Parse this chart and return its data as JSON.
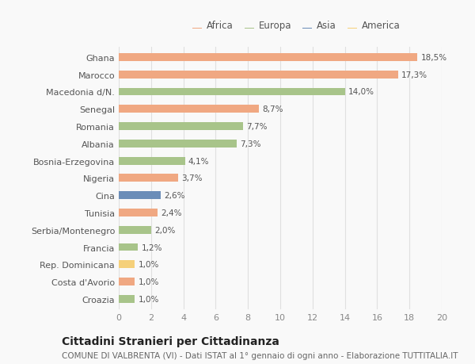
{
  "categories": [
    "Ghana",
    "Marocco",
    "Macedonia d/N.",
    "Senegal",
    "Romania",
    "Albania",
    "Bosnia-Erzegovina",
    "Nigeria",
    "Cina",
    "Tunisia",
    "Serbia/Montenegro",
    "Francia",
    "Rep. Dominicana",
    "Costa d'Avorio",
    "Croazia"
  ],
  "values": [
    18.5,
    17.3,
    14.0,
    8.7,
    7.7,
    7.3,
    4.1,
    3.7,
    2.6,
    2.4,
    2.0,
    1.2,
    1.0,
    1.0,
    1.0
  ],
  "labels": [
    "18,5%",
    "17,3%",
    "14,0%",
    "8,7%",
    "7,7%",
    "7,3%",
    "4,1%",
    "3,7%",
    "2,6%",
    "2,4%",
    "2,0%",
    "1,2%",
    "1,0%",
    "1,0%",
    "1,0%"
  ],
  "continents": [
    "Africa",
    "Africa",
    "Europa",
    "Africa",
    "Europa",
    "Europa",
    "Europa",
    "Africa",
    "Asia",
    "Africa",
    "Europa",
    "Europa",
    "America",
    "Africa",
    "Europa"
  ],
  "colors": {
    "Africa": "#F0A882",
    "Europa": "#A8C48A",
    "Asia": "#6B8DB8",
    "America": "#F5D07A"
  },
  "legend_order": [
    "Africa",
    "Europa",
    "Asia",
    "America"
  ],
  "xlim": [
    0,
    20
  ],
  "xticks": [
    0,
    2,
    4,
    6,
    8,
    10,
    12,
    14,
    16,
    18,
    20
  ],
  "title": "Cittadini Stranieri per Cittadinanza",
  "subtitle": "COMUNE DI VALBRENTA (VI) - Dati ISTAT al 1° gennaio di ogni anno - Elaborazione TUTTITALIA.IT",
  "background_color": "#f9f9f9",
  "bar_height": 0.45,
  "label_fontsize": 7.5,
  "ylabel_fontsize": 8,
  "xlabel_fontsize": 8,
  "title_fontsize": 10,
  "subtitle_fontsize": 7.5
}
